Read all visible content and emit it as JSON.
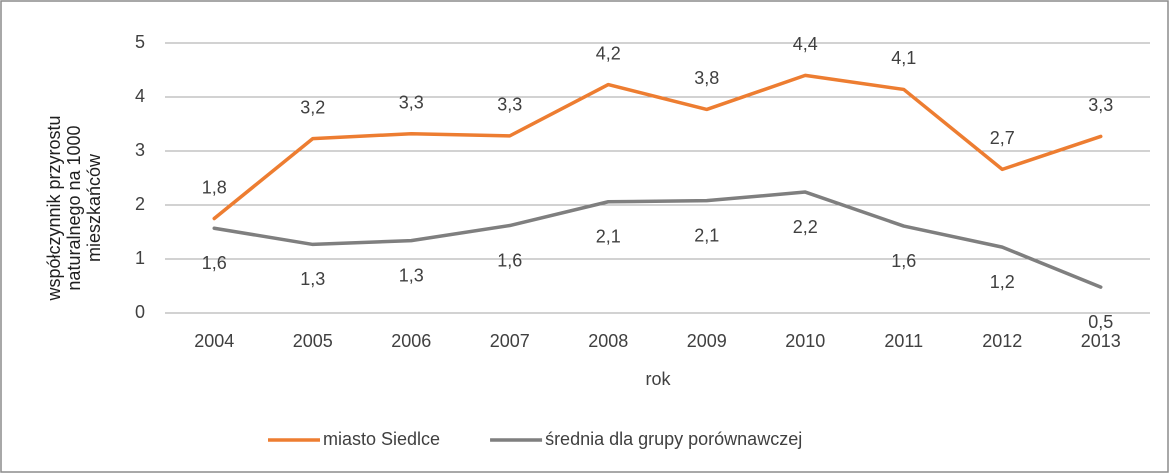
{
  "chart_data": {
    "type": "line",
    "x_label": "rok",
    "y_label": "współczynnik przyrostu naturalnego na 1000 mieszkańców",
    "categories": [
      "2004",
      "2005",
      "2006",
      "2007",
      "2008",
      "2009",
      "2010",
      "2011",
      "2012",
      "2013"
    ],
    "series": [
      {
        "name": "miasto Siedlce",
        "color": "#ed7d31",
        "values": [
          1.75,
          3.23,
          3.32,
          3.28,
          4.23,
          3.77,
          4.4,
          4.14,
          2.66,
          3.27
        ],
        "value_labels": [
          "1,8",
          "3,2",
          "3,3",
          "3,3",
          "4,2",
          "3,8",
          "4,4",
          "4,1",
          "2,7",
          "3,3"
        ]
      },
      {
        "name": "średnia dla grupy porównawczej",
        "color": "#7f7f7f",
        "values": [
          1.57,
          1.27,
          1.34,
          1.62,
          2.06,
          2.08,
          2.24,
          1.61,
          1.22,
          0.48
        ],
        "value_labels": [
          "1,6",
          "1,3",
          "1,3",
          "1,6",
          "2,1",
          "2,1",
          "2,2",
          "1,6",
          "1,2",
          "0,5"
        ]
      }
    ],
    "ylim": [
      0,
      5
    ],
    "yticks": [
      0,
      1,
      2,
      3,
      4,
      5
    ],
    "grid": true,
    "legend": "bottom"
  }
}
